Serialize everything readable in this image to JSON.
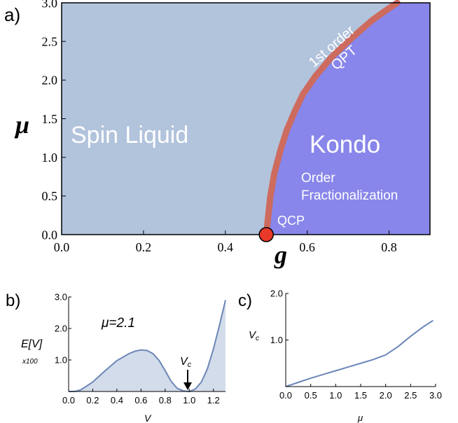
{
  "chart_data": [
    {
      "panel": "a)",
      "type": "area",
      "xlabel": "g",
      "ylabel": "μ",
      "xlim": [
        0.0,
        0.9
      ],
      "ylim": [
        0.0,
        3.0
      ],
      "x_ticks": [
        "0.0",
        "0.2",
        "0.4",
        "0.6",
        "0.8"
      ],
      "y_ticks": [
        "0.0",
        "0.5",
        "1.0",
        "1.5",
        "2.0",
        "2.5",
        "3.0"
      ],
      "x_tick_values": [
        0.0,
        0.2,
        0.4,
        0.6,
        0.8
      ],
      "y_tick_values": [
        0.0,
        0.5,
        1.0,
        1.5,
        2.0,
        2.5,
        3.0
      ],
      "boundary": {
        "x": [
          0.5,
          0.505,
          0.51,
          0.52,
          0.535,
          0.55,
          0.57,
          0.59,
          0.62,
          0.66,
          0.71,
          0.76,
          0.8,
          0.82
        ],
        "y": [
          0.0,
          0.25,
          0.5,
          0.8,
          1.1,
          1.35,
          1.6,
          1.82,
          2.05,
          2.3,
          2.55,
          2.78,
          2.93,
          3.0
        ]
      },
      "qcp_point": {
        "x": 0.5,
        "y": 0.0
      },
      "regions": [
        {
          "name": "Spin Liquid",
          "color": "#b2c3dc"
        },
        {
          "name": "Kondo",
          "color": "#8886ea"
        }
      ],
      "labels": {
        "spin_liquid": "Spin Liquid",
        "kondo": "Kondo",
        "order": "Order",
        "fractionalization": "Fractionalization",
        "first_order": "1st order",
        "qpt": "QPT",
        "qcp": "QCP"
      },
      "boundary_color": "#cd6b5e",
      "qcp_color": "#e8392b"
    },
    {
      "panel": "b)",
      "type": "area",
      "xlabel": "V",
      "ylabel": "E[V]",
      "ylabel_scale": "x100",
      "annotation": "μ=2.1",
      "vc_label": "V",
      "vc_sub": "c",
      "vc_value": 1.0,
      "xlim": [
        0.0,
        1.3
      ],
      "ylim": [
        0.0,
        3.0
      ],
      "x_ticks": [
        "0.0",
        "0.2",
        "0.4",
        "0.6",
        "0.8",
        "1.0",
        "1.2"
      ],
      "y_ticks": [
        "1.0",
        "2.0",
        "3.0"
      ],
      "x_tick_values": [
        0.0,
        0.2,
        0.4,
        0.6,
        0.8,
        1.0,
        1.2
      ],
      "y_tick_values": [
        1.0,
        2.0,
        3.0
      ],
      "x": [
        0.0,
        0.05,
        0.1,
        0.2,
        0.3,
        0.4,
        0.5,
        0.55,
        0.6,
        0.65,
        0.7,
        0.75,
        0.8,
        0.85,
        0.9,
        0.95,
        1.0,
        1.05,
        1.1,
        1.15,
        1.2,
        1.25,
        1.3
      ],
      "y": [
        0.0,
        0.0,
        0.05,
        0.3,
        0.65,
        0.98,
        1.2,
        1.28,
        1.32,
        1.3,
        1.2,
        0.98,
        0.66,
        0.32,
        0.1,
        0.02,
        0.0,
        0.08,
        0.3,
        0.72,
        1.35,
        2.1,
        2.9
      ],
      "line_color": "#6c86b8",
      "fill_color": "#d3dcea"
    },
    {
      "panel": "c)",
      "type": "line",
      "xlabel": "μ",
      "ylabel": "V",
      "ylabel_sub": "c",
      "xlim": [
        0.0,
        3.0
      ],
      "ylim": [
        0.0,
        2.0
      ],
      "x_ticks": [
        "0.0",
        "0.5",
        "1.0",
        "1.5",
        "2.0",
        "2.5",
        "3.0"
      ],
      "y_ticks": [
        "1.0",
        "2.0"
      ],
      "x_tick_values": [
        0.0,
        0.5,
        1.0,
        1.5,
        2.0,
        2.5,
        3.0
      ],
      "y_tick_values": [
        1.0,
        2.0
      ],
      "x": [
        0.0,
        0.25,
        0.5,
        0.75,
        1.0,
        1.25,
        1.5,
        1.75,
        2.0,
        2.25,
        2.5,
        2.75,
        2.95
      ],
      "y": [
        0.0,
        0.09,
        0.18,
        0.26,
        0.34,
        0.42,
        0.5,
        0.58,
        0.68,
        0.86,
        1.08,
        1.28,
        1.42
      ],
      "line_color": "#6c86b8"
    }
  ]
}
